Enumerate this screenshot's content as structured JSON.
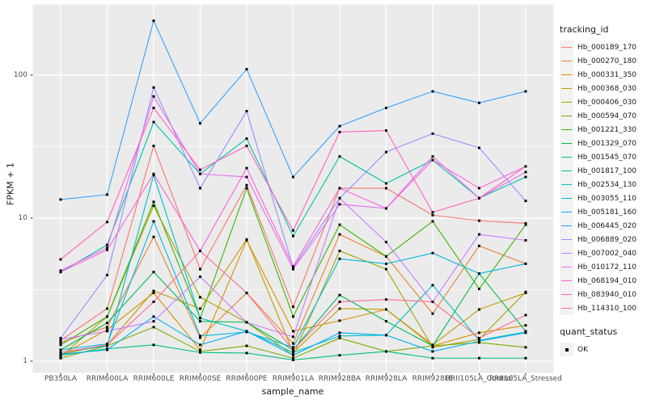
{
  "chart_data": {
    "type": "line",
    "title": "",
    "xlabel": "sample_name",
    "ylabel": "FPKM + 1",
    "y_scale": "log10",
    "y_ticks": [
      1,
      10,
      100
    ],
    "ylim": [
      0.85,
      310
    ],
    "grid": "on",
    "panel_bg": "#ebebeb",
    "grid_color": "#ffffff",
    "point_color": "#000000",
    "point_shape": "filled-square",
    "legend_position": "right",
    "categories": [
      "PB350LA",
      "RRIM600LA",
      "RRIM600LE",
      "RRIM600SE",
      "RRIM600PE",
      "RRIM901LA",
      "RRIM928BA",
      "RRIM928LA",
      "RRIM928LE",
      "RRII105LA_Control",
      "RRII105LA_Stressed"
    ],
    "series": [
      {
        "name": "Hb_000189_170",
        "color": "#F8766D",
        "values": [
          1.4,
          2.33,
          32,
          4.4,
          17,
          2.4,
          16.2,
          16.2,
          10.5,
          9.6,
          9.2
        ]
      },
      {
        "name": "Hb_000270_180",
        "color": "#EA8331",
        "values": [
          1.35,
          1.73,
          7.4,
          1.46,
          3.0,
          1.33,
          7.7,
          5.4,
          2.15,
          6.4,
          4.8
        ]
      },
      {
        "name": "Hb_000331_350",
        "color": "#D89000",
        "values": [
          1.1,
          1.66,
          3.0,
          1.2,
          7.0,
          1.62,
          1.92,
          2.3,
          1.28,
          1.58,
          1.78
        ]
      },
      {
        "name": "Hb_000368_030",
        "color": "#C09B00",
        "values": [
          1.12,
          1.3,
          3.1,
          2.33,
          7.1,
          1.15,
          2.33,
          2.3,
          1.3,
          2.3,
          3.0
        ]
      },
      {
        "name": "Hb_000406_030",
        "color": "#A3A500",
        "values": [
          1.08,
          2.05,
          12.2,
          2.8,
          1.87,
          1.1,
          5.9,
          4.4,
          1.25,
          1.42,
          3.05
        ]
      },
      {
        "name": "Hb_000594_070",
        "color": "#7CAE00",
        "values": [
          1.05,
          1.28,
          1.73,
          1.17,
          1.28,
          1.05,
          1.45,
          1.17,
          1.28,
          1.35,
          1.25
        ]
      },
      {
        "name": "Hb_001221_330",
        "color": "#39B600",
        "values": [
          1.3,
          2.05,
          13.0,
          2.0,
          16.2,
          2.05,
          9.0,
          5.4,
          9.5,
          3.2,
          9.0
        ]
      },
      {
        "name": "Hb_001329_070",
        "color": "#00BB4E",
        "values": [
          1.2,
          1.85,
          4.2,
          1.9,
          1.87,
          1.2,
          2.9,
          1.9,
          1.28,
          4.1,
          1.62
        ]
      },
      {
        "name": "Hb_001545_070",
        "color": "#00BF7D",
        "values": [
          1.1,
          1.22,
          1.3,
          1.15,
          1.14,
          1.02,
          1.1,
          1.17,
          1.05,
          1.05,
          1.05
        ]
      },
      {
        "name": "Hb_001817_100",
        "color": "#00C1A3",
        "values": [
          4.2,
          6.5,
          47,
          20.4,
          36,
          7.5,
          27,
          17.5,
          25.5,
          13.8,
          19.4
        ]
      },
      {
        "name": "Hb_002534_130",
        "color": "#00BFC4",
        "values": [
          1.15,
          1.28,
          20,
          2.0,
          1.62,
          1.15,
          1.5,
          1.52,
          3.4,
          1.4,
          1.6
        ]
      },
      {
        "name": "Hb_003055_110",
        "color": "#00BAE0",
        "values": [
          1.2,
          1.32,
          9.5,
          1.5,
          1.6,
          1.25,
          5.2,
          4.8,
          5.7,
          4.1,
          4.8
        ]
      },
      {
        "name": "Hb_005181_160",
        "color": "#00B0F6",
        "values": [
          1.12,
          1.2,
          2.05,
          1.3,
          1.62,
          1.1,
          1.58,
          1.52,
          1.17,
          1.38,
          1.58
        ]
      },
      {
        "name": "Hb_006445_020",
        "color": "#35A2FF",
        "values": [
          13.5,
          14.6,
          240,
          46,
          110,
          19.4,
          44,
          59,
          77,
          64,
          77
        ]
      },
      {
        "name": "Hb_006889_020",
        "color": "#9590FF",
        "values": [
          1.45,
          4.0,
          82,
          16.2,
          56,
          4.5,
          13.8,
          29,
          39,
          31,
          13.2
        ]
      },
      {
        "name": "Hb_007002_040",
        "color": "#C77CFF",
        "values": [
          1.42,
          1.62,
          1.9,
          3.9,
          1.87,
          1.48,
          13.8,
          6.8,
          2.6,
          7.7,
          7.0
        ]
      },
      {
        "name": "Hb_010172_110",
        "color": "#E76BF3",
        "values": [
          4.3,
          6.2,
          71,
          20.4,
          19.4,
          4.4,
          12.5,
          11.7,
          27,
          13.8,
          21
        ]
      },
      {
        "name": "Hb_068194_010",
        "color": "#FA62DB",
        "values": [
          4.2,
          6.0,
          20.4,
          5.9,
          22.4,
          4.6,
          16.2,
          11.7,
          25.5,
          16.2,
          23
        ]
      },
      {
        "name": "Hb_083940_010",
        "color": "#FF62BC",
        "values": [
          5.15,
          9.4,
          59,
          21.8,
          32,
          8.2,
          40,
          41,
          11,
          13.8,
          23
        ]
      },
      {
        "name": "Hb_114310_100",
        "color": "#FF6A98",
        "values": [
          1.15,
          1.3,
          2.6,
          5.9,
          3.0,
          1.2,
          2.6,
          2.7,
          2.6,
          1.45,
          2.1
        ]
      }
    ],
    "legend": {
      "tracking_title": "tracking_id",
      "quant_title": "quant_status",
      "quant_items": [
        "OK"
      ]
    }
  }
}
